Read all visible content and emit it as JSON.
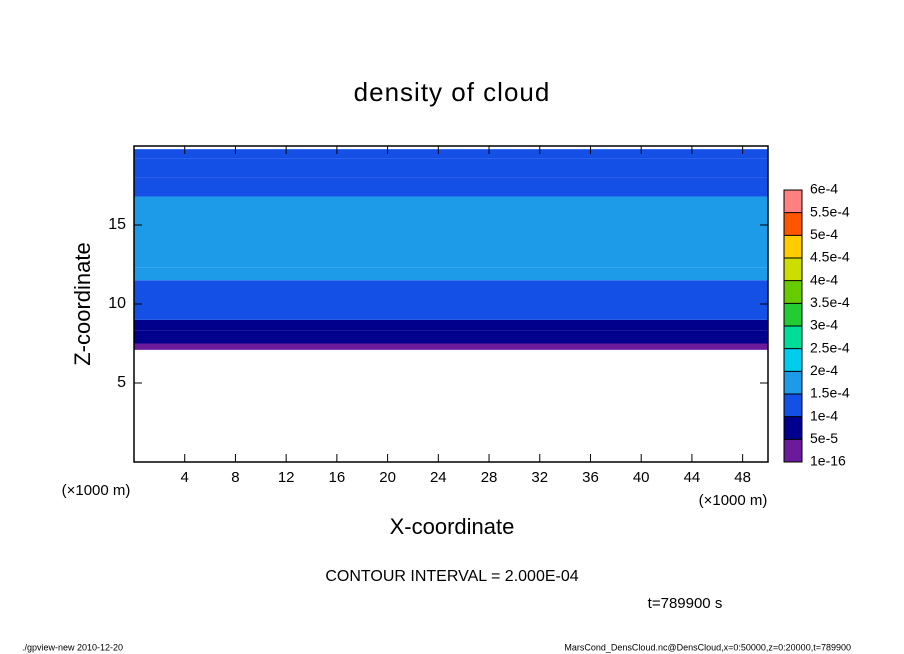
{
  "chart_data": {
    "type": "contour",
    "title": "density of cloud",
    "x_label": "X-coordinate",
    "y_label": "Z-coordinate",
    "x_unit_left": "(×1000 m)",
    "x_unit_right": "(×1000 m)",
    "xlim": [
      0,
      50
    ],
    "ylim": [
      0,
      20
    ],
    "xticks": [
      4,
      8,
      12,
      16,
      20,
      24,
      28,
      32,
      36,
      40,
      44,
      48
    ],
    "yticks": [
      5,
      10,
      15
    ],
    "z_bins": [
      7.1,
      7.5,
      8.3,
      9.0,
      10.0,
      11.5,
      12.3,
      16.8,
      18.0,
      19.2,
      19.8
    ],
    "values": [
      3e-05,
      7e-05,
      9e-05,
      0.00011,
      0.00013,
      0.00015,
      0.00016,
      0.00014,
      0.00012,
      0.00011
    ],
    "colorbar": {
      "levels": [
        {
          "value": 1e-16,
          "label": "1e-16"
        },
        {
          "value": 5e-05,
          "label": "5e-5"
        },
        {
          "value": 0.0001,
          "label": "1e-4"
        },
        {
          "value": 0.00015,
          "label": "1.5e-4"
        },
        {
          "value": 0.0002,
          "label": "2e-4"
        },
        {
          "value": 0.00025,
          "label": "2.5e-4"
        },
        {
          "value": 0.0003,
          "label": "3e-4"
        },
        {
          "value": 0.00035,
          "label": "3.5e-4"
        },
        {
          "value": 0.0004,
          "label": "4e-4"
        },
        {
          "value": 0.00045,
          "label": "4.5e-4"
        },
        {
          "value": 0.0005,
          "label": "5e-4"
        },
        {
          "value": 0.00055,
          "label": "5.5e-4"
        },
        {
          "value": 0.0006,
          "label": "6e-4"
        }
      ],
      "colors": [
        "#6a1a9a",
        "#00008c",
        "#1450e6",
        "#1e9be8",
        "#00ccee",
        "#00dd99",
        "#22cc33",
        "#66cc00",
        "#ccdd00",
        "#ffcc00",
        "#ff5500",
        "#ff8080"
      ]
    },
    "annotations": [
      "CONTOUR INTERVAL = 2.000E-04",
      "t=789900 s"
    ],
    "footer_left": "./gpview-new  2010-12-20",
    "footer_right": "MarsCond_DensCloud.nc@DensCloud,x=0:50000,z=0:20000,t=789900"
  }
}
